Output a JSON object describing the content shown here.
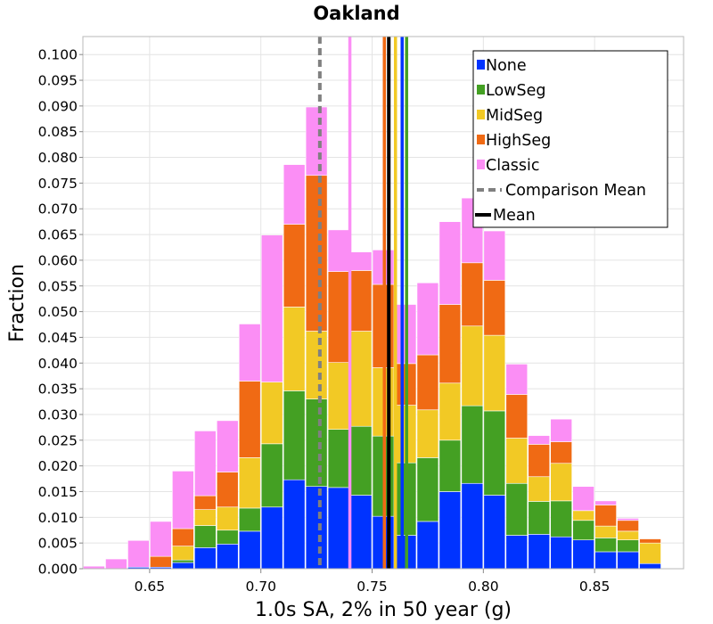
{
  "chart_data": {
    "type": "bar",
    "stacked": true,
    "title": "Oakland",
    "xlabel": "1.0s SA, 2% in 50 year (g)",
    "ylabel": "Fraction",
    "xlim": [
      0.62,
      0.89
    ],
    "ylim": [
      0,
      0.1035
    ],
    "grid": true,
    "legend_position": "top-right",
    "x_ticks": [
      "0.65",
      "0.70",
      "0.75",
      "0.80",
      "0.85"
    ],
    "x_tick_values": [
      0.65,
      0.7,
      0.75,
      0.8,
      0.85
    ],
    "y_ticks": [
      "0.000",
      "0.005",
      "0.010",
      "0.015",
      "0.020",
      "0.025",
      "0.030",
      "0.035",
      "0.040",
      "0.045",
      "0.050",
      "0.055",
      "0.060",
      "0.065",
      "0.070",
      "0.075",
      "0.080",
      "0.085",
      "0.090",
      "0.095",
      "0.100"
    ],
    "y_tick_values": [
      0,
      0.005,
      0.01,
      0.015,
      0.02,
      0.025,
      0.03,
      0.035,
      0.04,
      0.045,
      0.05,
      0.055,
      0.06,
      0.065,
      0.07,
      0.075,
      0.08,
      0.085,
      0.09,
      0.095,
      0.1
    ],
    "bin_starts": [
      0.62,
      0.63,
      0.64,
      0.65,
      0.66,
      0.67,
      0.68,
      0.69,
      0.7,
      0.71,
      0.72,
      0.73,
      0.74,
      0.75,
      0.76,
      0.77,
      0.78,
      0.79,
      0.8,
      0.81,
      0.82,
      0.83,
      0.84,
      0.85,
      0.86,
      0.87,
      0.88
    ],
    "bin_width": 0.01,
    "series": [
      {
        "name": "None",
        "color": "#0033ff",
        "values": [
          0.0,
          0.0,
          0.0003,
          0.0003,
          0.0012,
          0.0041,
          0.0048,
          0.0073,
          0.012,
          0.0173,
          0.016,
          0.0158,
          0.0143,
          0.0102,
          0.0065,
          0.0092,
          0.015,
          0.0166,
          0.0143,
          0.0065,
          0.0067,
          0.0062,
          0.0056,
          0.0033,
          0.0033,
          0.001,
          0.0
        ]
      },
      {
        "name": "LowSeg",
        "color": "#44a023",
        "values": [
          0.0,
          0.0,
          0.0,
          0.0,
          0.0005,
          0.0043,
          0.0027,
          0.0045,
          0.0123,
          0.0173,
          0.017,
          0.0113,
          0.0134,
          0.0156,
          0.0141,
          0.0124,
          0.01,
          0.0151,
          0.0164,
          0.0101,
          0.0064,
          0.007,
          0.0038,
          0.0027,
          0.0023,
          0.0,
          0.0
        ]
      },
      {
        "name": "MidSeg",
        "color": "#f2c925",
        "values": [
          0.0,
          0.0,
          0.0,
          0.0,
          0.0027,
          0.0031,
          0.0045,
          0.0098,
          0.012,
          0.0163,
          0.0132,
          0.013,
          0.0185,
          0.0133,
          0.0112,
          0.0093,
          0.0111,
          0.0155,
          0.0147,
          0.0088,
          0.0048,
          0.0073,
          0.0019,
          0.0023,
          0.0017,
          0.004,
          0.0
        ]
      },
      {
        "name": "HighSeg",
        "color": "#f06a14",
        "values": [
          0.0,
          0.0,
          0.0,
          0.0021,
          0.0034,
          0.0027,
          0.0068,
          0.0149,
          0.0,
          0.0161,
          0.0303,
          0.0177,
          0.0118,
          0.0162,
          0.0081,
          0.0107,
          0.0153,
          0.0123,
          0.0107,
          0.0085,
          0.0063,
          0.0042,
          0.0,
          0.0041,
          0.0021,
          0.0008,
          0.0
        ]
      },
      {
        "name": "Classic",
        "color": "#fb8ef5",
        "values": [
          0.0005,
          0.0019,
          0.0052,
          0.0068,
          0.0112,
          0.0126,
          0.01,
          0.0111,
          0.0286,
          0.0116,
          0.0133,
          0.0081,
          0.0036,
          0.0067,
          0.0115,
          0.014,
          0.0161,
          0.0126,
          0.0096,
          0.0059,
          0.0017,
          0.0044,
          0.0047,
          0.0008,
          0.0004,
          0.0,
          0.0
        ]
      }
    ],
    "vertical_lines": [
      {
        "label": "Comparison Mean",
        "x": 0.7265,
        "color": "#808080",
        "style": "dashed",
        "in_legend": true
      },
      {
        "label": "Classic",
        "x": 0.74,
        "color": "#fb8ef5",
        "style": "solid",
        "in_legend": false
      },
      {
        "label": "HighSeg",
        "x": 0.7555,
        "color": "#f06a14",
        "style": "solid",
        "in_legend": false
      },
      {
        "label": "MidSeg",
        "x": 0.7605,
        "color": "#f2c925",
        "style": "solid",
        "in_legend": false
      },
      {
        "label": "None",
        "x": 0.7635,
        "color": "#0033ff",
        "style": "solid",
        "in_legend": false
      },
      {
        "label": "LowSeg",
        "x": 0.7655,
        "color": "#44a023",
        "style": "solid",
        "in_legend": false
      },
      {
        "label": "Mean",
        "x": 0.7575,
        "color": "#000000",
        "style": "solid",
        "in_legend": true
      }
    ]
  },
  "legend": {
    "items": [
      {
        "label": "None",
        "kind": "box",
        "color": "#0033ff"
      },
      {
        "label": "LowSeg",
        "kind": "box",
        "color": "#44a023"
      },
      {
        "label": "MidSeg",
        "kind": "box",
        "color": "#f2c925"
      },
      {
        "label": "HighSeg",
        "kind": "box",
        "color": "#f06a14"
      },
      {
        "label": "Classic",
        "kind": "box",
        "color": "#fb8ef5"
      },
      {
        "label": "Comparison Mean",
        "kind": "dash",
        "color": "#808080"
      },
      {
        "label": "Mean",
        "kind": "line",
        "color": "#000000"
      }
    ]
  }
}
